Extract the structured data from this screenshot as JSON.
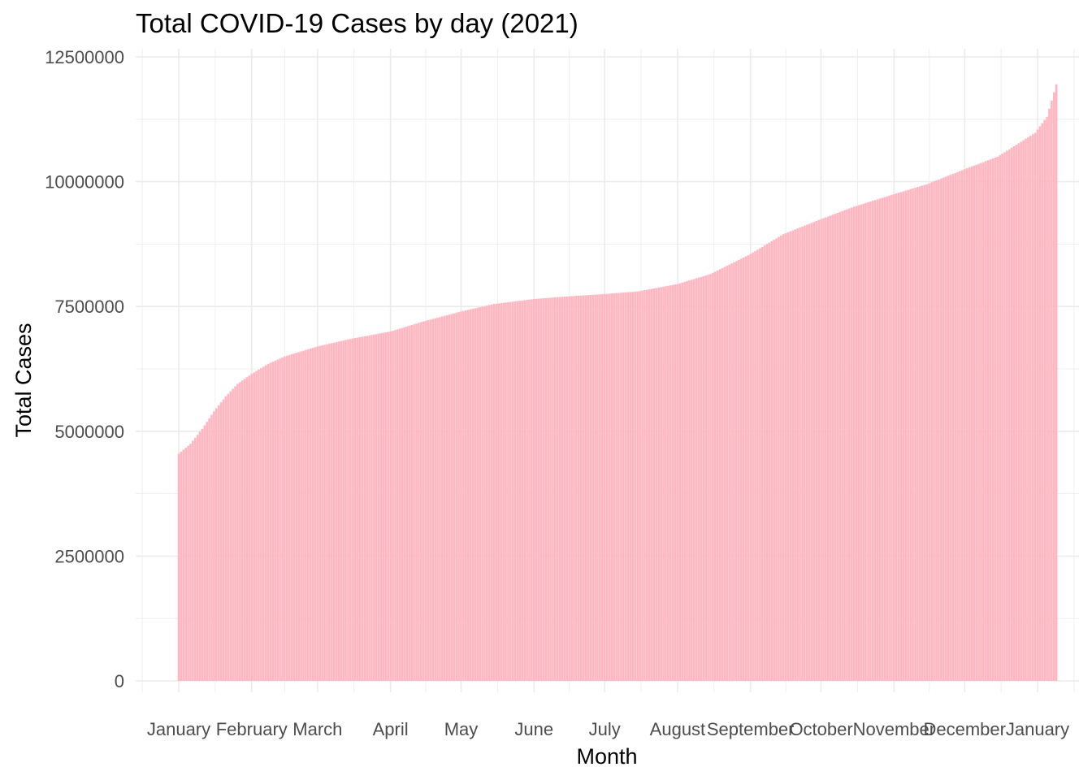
{
  "chart_data": {
    "type": "bar",
    "title": "Total COVID-19 Cases by day (2021)",
    "xlabel": "Month",
    "ylabel": "Total Cases",
    "x_range": [
      "2021-01-01",
      "2022-01-01"
    ],
    "x_ticks": [
      {
        "label": "January",
        "date": "2021-01-01"
      },
      {
        "label": "February",
        "date": "2021-02-01"
      },
      {
        "label": "March",
        "date": "2021-03-01"
      },
      {
        "label": "April",
        "date": "2021-04-01"
      },
      {
        "label": "May",
        "date": "2021-05-01"
      },
      {
        "label": "June",
        "date": "2021-06-01"
      },
      {
        "label": "July",
        "date": "2021-07-01"
      },
      {
        "label": "August",
        "date": "2021-08-01"
      },
      {
        "label": "September",
        "date": "2021-09-01"
      },
      {
        "label": "October",
        "date": "2021-10-01"
      },
      {
        "label": "November",
        "date": "2021-11-01"
      },
      {
        "label": "December",
        "date": "2021-12-01"
      },
      {
        "label": "January",
        "date": "2022-01-01"
      }
    ],
    "y_ticks": [
      0,
      2500000,
      5000000,
      7500000,
      10000000,
      12500000
    ],
    "ylim": [
      0,
      12500000
    ],
    "grid": true,
    "bar_color": "#FFB6C1",
    "series_keyframes": [
      {
        "date": "2021-01-01",
        "value": 4550000
      },
      {
        "date": "2021-01-06",
        "value": 4750000
      },
      {
        "date": "2021-01-11",
        "value": 5050000
      },
      {
        "date": "2021-01-16",
        "value": 5400000
      },
      {
        "date": "2021-01-21",
        "value": 5700000
      },
      {
        "date": "2021-01-26",
        "value": 5950000
      },
      {
        "date": "2021-02-01",
        "value": 6150000
      },
      {
        "date": "2021-02-08",
        "value": 6350000
      },
      {
        "date": "2021-02-15",
        "value": 6500000
      },
      {
        "date": "2021-03-01",
        "value": 6700000
      },
      {
        "date": "2021-03-15",
        "value": 6850000
      },
      {
        "date": "2021-04-01",
        "value": 7000000
      },
      {
        "date": "2021-04-15",
        "value": 7200000
      },
      {
        "date": "2021-05-01",
        "value": 7400000
      },
      {
        "date": "2021-05-15",
        "value": 7550000
      },
      {
        "date": "2021-06-01",
        "value": 7650000
      },
      {
        "date": "2021-06-15",
        "value": 7700000
      },
      {
        "date": "2021-07-01",
        "value": 7750000
      },
      {
        "date": "2021-07-15",
        "value": 7800000
      },
      {
        "date": "2021-08-01",
        "value": 7950000
      },
      {
        "date": "2021-08-15",
        "value": 8150000
      },
      {
        "date": "2021-09-01",
        "value": 8550000
      },
      {
        "date": "2021-09-15",
        "value": 8950000
      },
      {
        "date": "2021-10-01",
        "value": 9250000
      },
      {
        "date": "2021-10-15",
        "value": 9500000
      },
      {
        "date": "2021-11-01",
        "value": 9750000
      },
      {
        "date": "2021-11-15",
        "value": 9950000
      },
      {
        "date": "2021-12-01",
        "value": 10250000
      },
      {
        "date": "2021-12-15",
        "value": 10500000
      },
      {
        "date": "2021-12-25",
        "value": 10800000
      },
      {
        "date": "2021-12-31",
        "value": 10980000
      },
      {
        "date": "2022-01-05",
        "value": 11300000
      },
      {
        "date": "2022-01-09",
        "value": 11950000
      }
    ]
  }
}
